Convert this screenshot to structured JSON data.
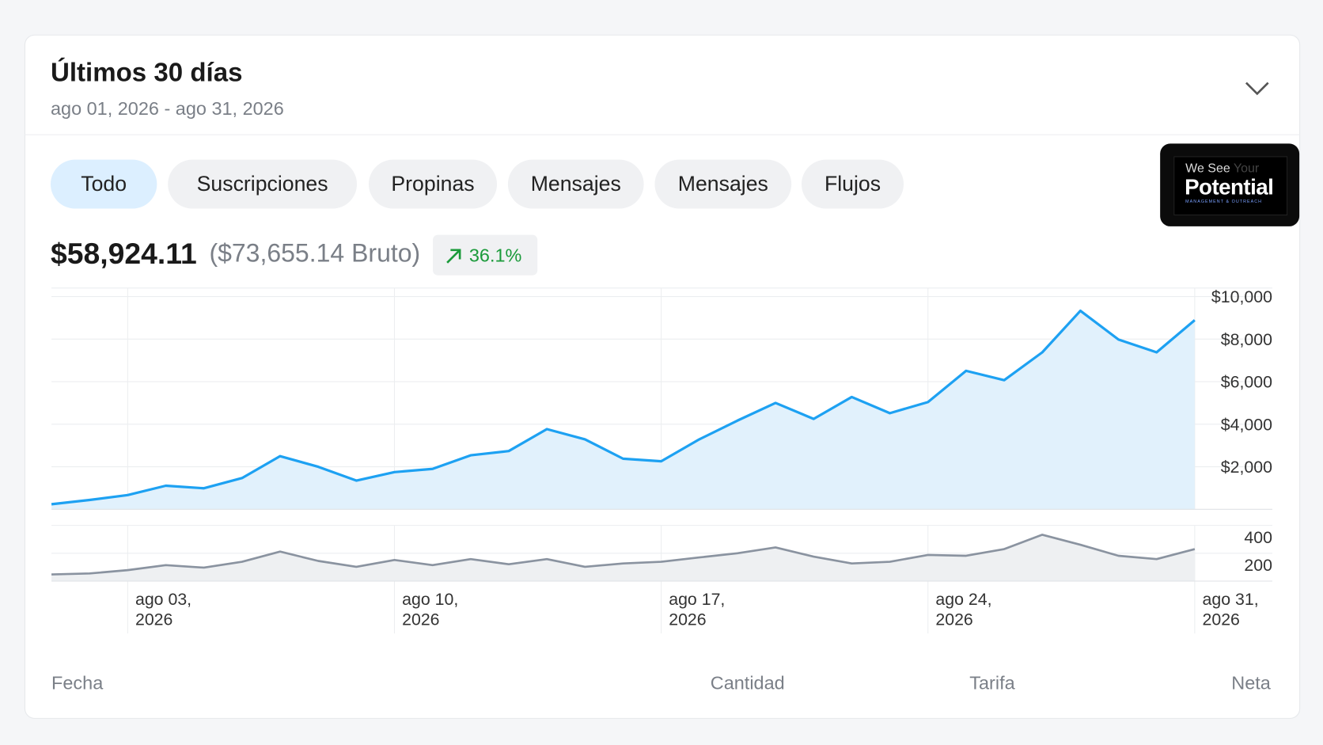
{
  "header": {
    "title": "Últimos 30 días",
    "date_range": "ago 01, 2026 - ago 31, 2026"
  },
  "tabs": [
    "Todo",
    "Suscripciones",
    "Propinas",
    "Mensajes",
    "Mensajes",
    "Flujos"
  ],
  "active_tab": 0,
  "logo": {
    "line1": "We See",
    "line1_faint": "Your",
    "line2": "Potential",
    "tagline": "MANAGEMENT & OUTREACH"
  },
  "summary": {
    "net": "$58,924.11",
    "gross": "($73,655.14 Bruto)",
    "change": "36.1%"
  },
  "chart_data": [
    {
      "type": "area",
      "color": "#1da1f2",
      "fill": "#e1f1fc",
      "x": [
        1,
        2,
        3,
        4,
        5,
        6,
        7,
        8,
        9,
        10,
        11,
        12,
        13,
        14,
        15,
        16,
        17,
        18,
        19,
        20,
        21,
        22,
        23,
        24,
        25,
        26,
        27,
        28,
        29,
        30,
        31
      ],
      "values": [
        240,
        440,
        670,
        1110,
        990,
        1470,
        2500,
        2000,
        1350,
        1750,
        1900,
        2540,
        2740,
        3770,
        3290,
        2380,
        2260,
        3290,
        4170,
        5000,
        4250,
        5280,
        4520,
        5040,
        6510,
        6070,
        7380,
        9330,
        7980,
        7380,
        8890
      ],
      "xlim": [
        1,
        31
      ],
      "ylim": [
        0,
        10400
      ],
      "yticks": [
        {
          "value": 2000,
          "label": "$2,000"
        },
        {
          "value": 4000,
          "label": "$4,000"
        },
        {
          "value": 6000,
          "label": "$6,000"
        },
        {
          "value": 8000,
          "label": "$8,000"
        },
        {
          "value": 10000,
          "label": "$10,000"
        }
      ],
      "grid": true
    },
    {
      "type": "area",
      "color": "#8a93a0",
      "fill": "#eef0f2",
      "x": [
        1,
        2,
        3,
        4,
        5,
        6,
        7,
        8,
        9,
        10,
        11,
        12,
        13,
        14,
        15,
        16,
        17,
        18,
        19,
        20,
        21,
        22,
        23,
        24,
        25,
        26,
        27,
        28,
        29,
        30,
        31
      ],
      "values": [
        48,
        55,
        79,
        115,
        97,
        139,
        212,
        145,
        103,
        152,
        115,
        158,
        121,
        158,
        103,
        127,
        139,
        170,
        200,
        242,
        176,
        127,
        139,
        188,
        182,
        230,
        333,
        261,
        182,
        158,
        230
      ],
      "xlim": [
        1,
        31
      ],
      "ylim": [
        0,
        400
      ],
      "yticks": [
        200,
        400
      ],
      "xticks": [
        {
          "value": 3,
          "label": "ago 03, 2026"
        },
        {
          "value": 10,
          "label": "ago 10, 2026"
        },
        {
          "value": 17,
          "label": "ago 17, 2026"
        },
        {
          "value": 24,
          "label": "ago 24, 2026"
        },
        {
          "value": 31,
          "label": "ago 31, 2026"
        }
      ],
      "grid": true
    }
  ],
  "columns": [
    "Fecha",
    "Cantidad",
    "Tarifa",
    "Neta"
  ]
}
